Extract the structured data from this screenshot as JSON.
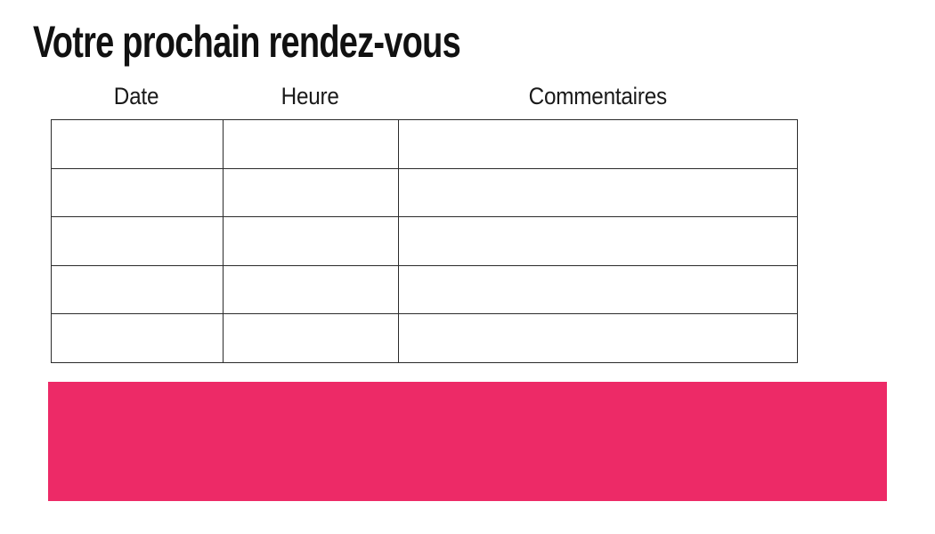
{
  "slide": {
    "title": "Votre prochain rendez-vous"
  },
  "appointments_table": {
    "headers": [
      "Date",
      "Heure",
      "Commentaires"
    ],
    "rows": [
      [
        "",
        "",
        ""
      ],
      [
        "",
        "",
        ""
      ],
      [
        "",
        "",
        ""
      ],
      [
        "",
        "",
        ""
      ],
      [
        "",
        "",
        ""
      ]
    ]
  },
  "banner": {
    "color": "#ED2A67"
  },
  "colors": {
    "table_border": "#222222",
    "title_text": "#111111",
    "header_text": "#1a1a1a",
    "background": "#ffffff"
  }
}
